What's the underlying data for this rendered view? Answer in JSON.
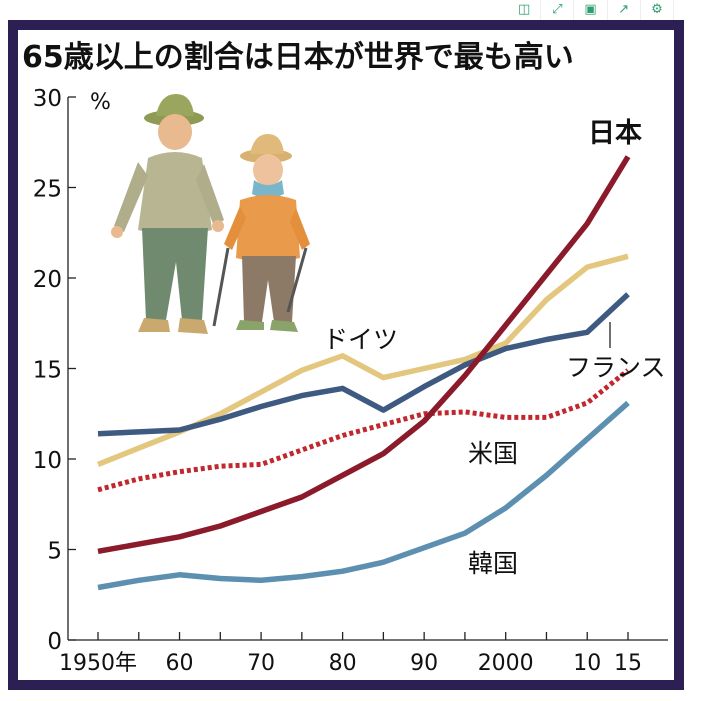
{
  "toolbar": {
    "icons": [
      "page-icon",
      "fullscreen-icon",
      "save-icon",
      "share-icon",
      "settings-icon"
    ]
  },
  "chart_data": {
    "type": "line",
    "title": "65歳以上の割合は日本が世界で最も高い",
    "ylabel": "%",
    "ylim": [
      0,
      30
    ],
    "yticks": [
      0,
      5,
      10,
      15,
      20,
      25,
      30
    ],
    "xlim": [
      1950,
      2015
    ],
    "xticks": [
      1950,
      1960,
      1970,
      1980,
      1990,
      2000,
      2010,
      2015
    ],
    "xticklabels": [
      "1950年",
      "60",
      "70",
      "80",
      "90",
      "2000",
      "10",
      "15"
    ],
    "x": [
      1950,
      1955,
      1960,
      1965,
      1970,
      1975,
      1980,
      1985,
      1990,
      1995,
      2000,
      2005,
      2010,
      2015
    ],
    "series": [
      {
        "name": "日本",
        "color": "#8b1a2b",
        "style": "solid",
        "values": [
          4.9,
          5.3,
          5.7,
          6.3,
          7.1,
          7.9,
          9.1,
          10.3,
          12.1,
          14.6,
          17.4,
          20.2,
          23.0,
          26.7
        ]
      },
      {
        "name": "ドイツ",
        "color": "#e3c77e",
        "style": "solid",
        "values": [
          9.7,
          10.6,
          11.5,
          12.5,
          13.7,
          14.9,
          15.7,
          14.5,
          15.0,
          15.5,
          16.4,
          18.8,
          20.6,
          21.2
        ]
      },
      {
        "name": "フランス",
        "color": "#3e5a80",
        "style": "solid",
        "values": [
          11.4,
          11.5,
          11.6,
          12.2,
          12.9,
          13.5,
          13.9,
          12.7,
          14.0,
          15.2,
          16.1,
          16.6,
          17.0,
          19.1
        ]
      },
      {
        "name": "米国",
        "color": "#c1272d",
        "style": "dotted",
        "values": [
          8.3,
          8.9,
          9.3,
          9.6,
          9.7,
          10.5,
          11.3,
          11.9,
          12.5,
          12.6,
          12.3,
          12.3,
          13.1,
          14.9
        ]
      },
      {
        "name": "韓国",
        "color": "#5d8fb0",
        "style": "solid",
        "values": [
          2.9,
          3.3,
          3.6,
          3.4,
          3.3,
          3.5,
          3.8,
          4.3,
          5.1,
          5.9,
          7.3,
          9.1,
          11.1,
          13.1
        ]
      }
    ]
  }
}
